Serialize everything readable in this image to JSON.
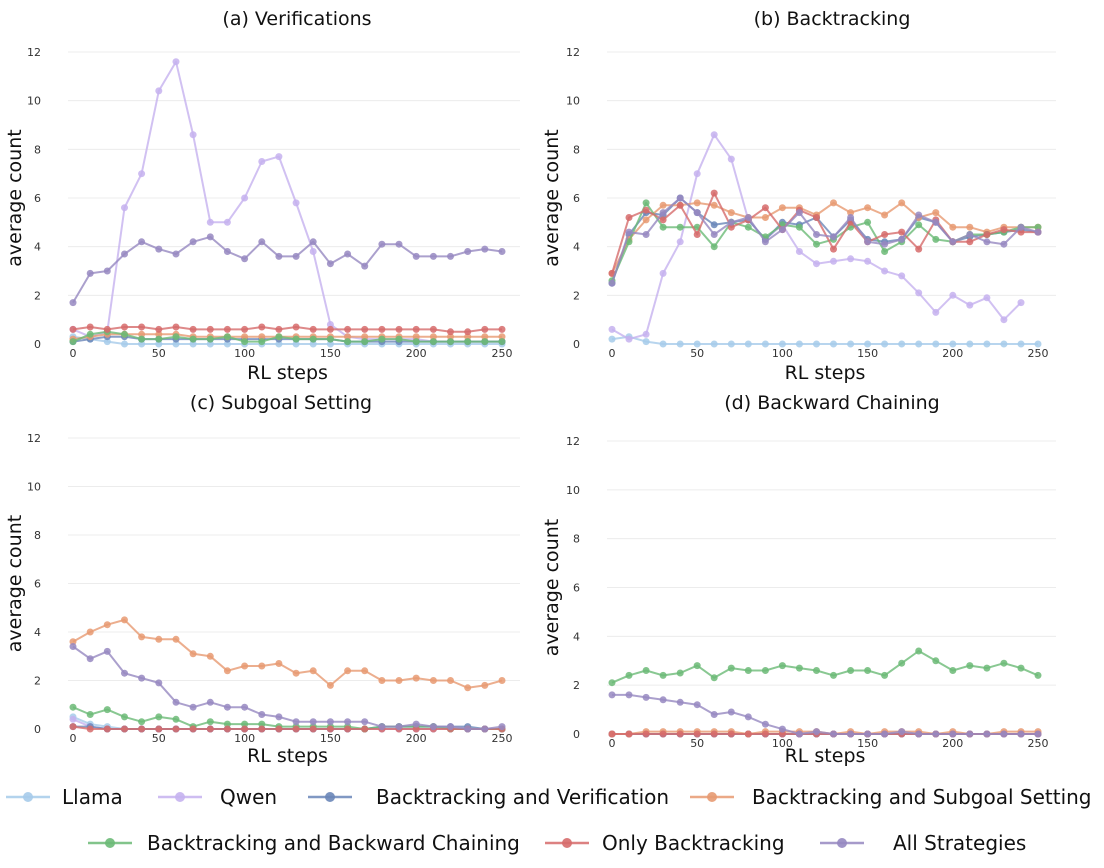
{
  "colors": {
    "Llama": "#a6cbea",
    "Qwen": "#c5b2ef",
    "Backtracking and Verification": "#6a86b8",
    "Backtracking and Subgoal Setting": "#e79a72",
    "Backtracking and Backward Chaining": "#6cba77",
    "Only Backtracking": "#d66b6b",
    "All Strategies": "#9688c1"
  },
  "legend": {
    "items": [
      "Llama",
      "Qwen",
      "Backtracking and Verification",
      "Backtracking and Subgoal Setting",
      "Backtracking and Backward Chaining",
      "Only Backtracking",
      "All Strategies"
    ]
  },
  "chart_data": [
    {
      "type": "line",
      "title": "(a) Verifications",
      "xlabel": "RL steps",
      "ylabel": "average count",
      "xlim": [
        0,
        250
      ],
      "ylim": [
        0,
        12
      ],
      "xticks": [
        "0",
        "50",
        "100",
        "150",
        "200",
        "250"
      ],
      "yticks": [
        "0",
        "2",
        "4",
        "6",
        "8",
        "10",
        "12"
      ],
      "x": [
        0,
        10,
        20,
        30,
        40,
        50,
        60,
        70,
        80,
        90,
        100,
        110,
        120,
        130,
        140,
        150,
        160,
        170,
        180,
        190,
        200,
        210,
        220,
        230,
        240,
        250
      ],
      "series": [
        {
          "name": "Llama",
          "values": [
            0.3,
            0.2,
            0.1,
            0.0,
            0.0,
            0.0,
            0.0,
            0.0,
            0.0,
            0.0,
            0.0,
            0.0,
            0.0,
            0.0,
            0.0,
            0.0,
            0.0,
            0.0,
            0.0,
            0.0,
            0.0,
            0.0,
            0.0,
            0.0,
            0.0,
            0.0
          ]
        },
        {
          "name": "Qwen",
          "values": [
            0.6,
            0.3,
            0.5,
            5.6,
            7.0,
            10.4,
            11.6,
            8.6,
            5.0,
            5.0,
            6.0,
            7.5,
            7.7,
            5.8,
            3.8,
            0.8,
            0.3,
            0.2,
            0.2,
            0.2,
            0.2,
            0.1,
            0.1,
            0.1,
            0.1,
            0.1
          ]
        },
        {
          "name": "Backtracking and Verification",
          "values": [
            0.1,
            0.2,
            0.3,
            0.3,
            0.2,
            0.2,
            0.2,
            0.2,
            0.2,
            0.2,
            0.2,
            0.2,
            0.2,
            0.2,
            0.2,
            0.2,
            0.1,
            0.1,
            0.1,
            0.1,
            0.1,
            0.1,
            0.1,
            0.1,
            0.1,
            0.1
          ]
        },
        {
          "name": "Backtracking and Subgoal Setting",
          "values": [
            0.2,
            0.3,
            0.4,
            0.4,
            0.4,
            0.4,
            0.4,
            0.3,
            0.3,
            0.3,
            0.3,
            0.3,
            0.3,
            0.3,
            0.3,
            0.3,
            0.3,
            0.3,
            0.3,
            0.3,
            0.3,
            0.3,
            0.3,
            0.3,
            0.3,
            0.3
          ]
        },
        {
          "name": "Backtracking and Backward Chaining",
          "values": [
            0.1,
            0.4,
            0.5,
            0.4,
            0.2,
            0.2,
            0.3,
            0.2,
            0.2,
            0.3,
            0.1,
            0.1,
            0.3,
            0.2,
            0.2,
            0.2,
            0.1,
            0.1,
            0.2,
            0.2,
            0.1,
            0.1,
            0.1,
            0.1,
            0.1,
            0.1
          ]
        },
        {
          "name": "Only Backtracking",
          "values": [
            0.6,
            0.7,
            0.6,
            0.7,
            0.7,
            0.6,
            0.7,
            0.6,
            0.6,
            0.6,
            0.6,
            0.7,
            0.6,
            0.7,
            0.6,
            0.6,
            0.6,
            0.6,
            0.6,
            0.6,
            0.6,
            0.6,
            0.5,
            0.5,
            0.6,
            0.6
          ]
        },
        {
          "name": "All Strategies",
          "values": [
            1.7,
            2.9,
            3.0,
            3.7,
            4.2,
            3.9,
            3.7,
            4.2,
            4.4,
            3.8,
            3.5,
            4.2,
            3.6,
            3.6,
            4.2,
            3.3,
            3.7,
            3.2,
            4.1,
            4.1,
            3.6,
            3.6,
            3.6,
            3.8,
            3.9,
            3.8
          ]
        }
      ]
    },
    {
      "type": "line",
      "title": "(b) Backtracking",
      "xlabel": "RL steps",
      "ylabel": "average count",
      "xlim": [
        0,
        250
      ],
      "ylim": [
        0,
        12
      ],
      "xticks": [
        "0",
        "50",
        "100",
        "150",
        "200",
        "250"
      ],
      "yticks": [
        "0",
        "2",
        "4",
        "6",
        "8",
        "10",
        "12"
      ],
      "x": [
        0,
        10,
        20,
        30,
        40,
        50,
        60,
        70,
        80,
        90,
        100,
        110,
        120,
        130,
        140,
        150,
        160,
        170,
        180,
        190,
        200,
        210,
        220,
        230,
        240,
        250
      ],
      "series": [
        {
          "name": "Llama",
          "values": [
            0.2,
            0.3,
            0.1,
            0.0,
            0.0,
            0.0,
            0.0,
            0.0,
            0.0,
            0.0,
            0.0,
            0.0,
            0.0,
            0.0,
            0.0,
            0.0,
            0.0,
            0.0,
            0.0,
            0.0,
            0.0,
            0.0,
            0.0,
            0.0,
            0.0,
            0.0
          ]
        },
        {
          "name": "Qwen",
          "values": [
            0.6,
            0.2,
            0.4,
            2.9,
            4.2,
            7.0,
            8.6,
            7.6,
            5.1,
            4.3,
            4.9,
            3.8,
            3.3,
            3.4,
            3.5,
            3.4,
            3.0,
            2.8,
            2.1,
            1.3,
            2.0,
            1.6,
            1.9,
            1.0,
            1.7,
            null
          ]
        },
        {
          "name": "Backtracking and Verification",
          "values": [
            2.5,
            4.5,
            5.4,
            5.3,
            6.0,
            5.4,
            4.9,
            5.0,
            5.1,
            4.3,
            5.0,
            4.9,
            5.2,
            4.4,
            5.1,
            4.3,
            4.2,
            4.3,
            5.2,
            5.0,
            4.2,
            4.4,
            4.5,
            4.6,
            4.7,
            4.6
          ]
        },
        {
          "name": "Backtracking and Subgoal Setting",
          "values": [
            2.9,
            4.3,
            5.1,
            5.7,
            5.7,
            5.8,
            5.7,
            5.4,
            5.2,
            5.2,
            5.6,
            5.6,
            5.3,
            5.8,
            5.4,
            5.6,
            5.3,
            5.8,
            5.2,
            5.4,
            4.8,
            4.8,
            4.6,
            4.8,
            4.8,
            4.8
          ]
        },
        {
          "name": "Backtracking and Backward Chaining",
          "values": [
            2.6,
            4.2,
            5.8,
            4.8,
            4.8,
            4.8,
            4.0,
            5.0,
            4.8,
            4.4,
            4.9,
            4.8,
            4.1,
            4.3,
            4.8,
            5.0,
            3.8,
            4.2,
            4.9,
            4.3,
            4.2,
            4.5,
            4.5,
            4.6,
            4.8,
            4.8
          ]
        },
        {
          "name": "Only Backtracking",
          "values": [
            2.9,
            5.2,
            5.5,
            5.1,
            5.7,
            4.5,
            6.2,
            4.8,
            5.1,
            5.6,
            4.7,
            5.5,
            5.2,
            3.9,
            5.0,
            4.2,
            4.5,
            4.6,
            3.9,
            5.1,
            4.2,
            4.2,
            4.5,
            4.7,
            4.6,
            4.6
          ]
        },
        {
          "name": "All Strategies",
          "values": [
            2.5,
            4.6,
            4.5,
            5.4,
            6.0,
            5.4,
            4.5,
            5.0,
            5.2,
            4.2,
            4.7,
            5.4,
            4.5,
            4.4,
            5.2,
            4.2,
            4.1,
            4.3,
            5.3,
            5.0,
            4.2,
            4.5,
            4.2,
            4.1,
            4.8,
            4.6
          ]
        }
      ]
    },
    {
      "type": "line",
      "title": "(c) Subgoal Setting",
      "xlabel": "RL steps",
      "ylabel": "average count",
      "xlim": [
        0,
        250
      ],
      "ylim": [
        0,
        12
      ],
      "xticks": [
        "0",
        "50",
        "100",
        "150",
        "200",
        "250"
      ],
      "yticks": [
        "0",
        "2",
        "4",
        "6",
        "8",
        "10",
        "12"
      ],
      "x": [
        0,
        10,
        20,
        30,
        40,
        50,
        60,
        70,
        80,
        90,
        100,
        110,
        120,
        130,
        140,
        150,
        160,
        170,
        180,
        190,
        200,
        210,
        220,
        230,
        240,
        250
      ],
      "series": [
        {
          "name": "Llama",
          "values": [
            0.5,
            0.2,
            0.1,
            0.0,
            0.0,
            0.0,
            0.0,
            0.0,
            0.0,
            0.0,
            0.0,
            0.0,
            0.0,
            0.0,
            0.0,
            0.0,
            0.0,
            0.0,
            0.0,
            0.0,
            0.0,
            0.0,
            0.0,
            0.0,
            0.0,
            0.0
          ]
        },
        {
          "name": "Qwen",
          "values": [
            0.4,
            0.1,
            0.0,
            0.0,
            0.0,
            0.0,
            0.0,
            0.0,
            0.0,
            0.0,
            0.0,
            0.0,
            0.0,
            0.0,
            0.0,
            0.0,
            0.0,
            0.0,
            0.0,
            0.0,
            0.0,
            0.0,
            0.0,
            0.0,
            0.0,
            0.0
          ]
        },
        {
          "name": "Backtracking and Verification",
          "values": [
            0.1,
            0.1,
            0.0,
            0.0,
            0.0,
            0.0,
            0.0,
            0.0,
            0.0,
            0.0,
            0.0,
            0.0,
            0.0,
            0.0,
            0.0,
            0.0,
            0.0,
            0.0,
            0.1,
            0.1,
            0.1,
            0.1,
            0.1,
            0.1,
            0.0,
            0.0
          ]
        },
        {
          "name": "Backtracking and Subgoal Setting",
          "values": [
            3.6,
            4.0,
            4.3,
            4.5,
            3.8,
            3.7,
            3.7,
            3.1,
            3.0,
            2.4,
            2.6,
            2.6,
            2.7,
            2.3,
            2.4,
            1.8,
            2.4,
            2.4,
            2.0,
            2.0,
            2.1,
            2.0,
            2.0,
            1.7,
            1.8,
            2.0
          ]
        },
        {
          "name": "Backtracking and Backward Chaining",
          "values": [
            0.9,
            0.6,
            0.8,
            0.5,
            0.3,
            0.5,
            0.4,
            0.1,
            0.3,
            0.2,
            0.2,
            0.2,
            0.1,
            0.1,
            0.1,
            0.1,
            0.1,
            0.0,
            0.1,
            0.1,
            0.1,
            0.1,
            0.0,
            0.0,
            0.0,
            0.0
          ]
        },
        {
          "name": "Only Backtracking",
          "values": [
            0.1,
            0.0,
            0.0,
            0.0,
            0.0,
            0.0,
            0.0,
            0.0,
            0.0,
            0.0,
            0.0,
            0.0,
            0.0,
            0.0,
            0.0,
            0.0,
            0.0,
            0.0,
            0.0,
            0.0,
            0.0,
            0.0,
            0.0,
            0.0,
            0.0,
            0.0
          ]
        },
        {
          "name": "All Strategies",
          "values": [
            3.4,
            2.9,
            3.2,
            2.3,
            2.1,
            1.9,
            1.1,
            0.9,
            1.1,
            0.9,
            0.9,
            0.6,
            0.5,
            0.3,
            0.3,
            0.3,
            0.3,
            0.3,
            0.1,
            0.1,
            0.2,
            0.1,
            0.1,
            0.0,
            0.0,
            0.1
          ]
        }
      ]
    },
    {
      "type": "line",
      "title": "(d) Backward Chaining",
      "xlabel": "RL steps",
      "ylabel": "average count",
      "xlim": [
        0,
        250
      ],
      "ylim": [
        0,
        12
      ],
      "xticks": [
        "0",
        "50",
        "100",
        "150",
        "200",
        "250"
      ],
      "yticks": [
        "0",
        "2",
        "4",
        "6",
        "8",
        "10",
        "12"
      ],
      "x": [
        0,
        10,
        20,
        30,
        40,
        50,
        60,
        70,
        80,
        90,
        100,
        110,
        120,
        130,
        140,
        150,
        160,
        170,
        180,
        190,
        200,
        210,
        220,
        230,
        240,
        250
      ],
      "series": [
        {
          "name": "Llama",
          "values": [
            0.0,
            0.0,
            0.0,
            0.0,
            0.0,
            0.0,
            0.0,
            0.0,
            0.0,
            0.0,
            0.0,
            0.0,
            0.0,
            0.0,
            0.0,
            0.0,
            0.0,
            0.0,
            0.0,
            0.0,
            0.0,
            0.0,
            0.0,
            0.0,
            0.0,
            0.0
          ]
        },
        {
          "name": "Qwen",
          "values": [
            0.0,
            0.0,
            0.0,
            0.0,
            0.0,
            0.0,
            0.0,
            0.0,
            0.0,
            0.0,
            0.0,
            0.0,
            0.0,
            0.0,
            0.0,
            0.0,
            0.0,
            0.0,
            0.0,
            0.0,
            0.0,
            0.0,
            0.0,
            0.0,
            0.0,
            0.0
          ]
        },
        {
          "name": "Backtracking and Verification",
          "values": [
            0.0,
            0.0,
            0.0,
            0.0,
            0.0,
            0.0,
            0.0,
            0.0,
            0.0,
            0.0,
            0.0,
            0.0,
            0.0,
            0.0,
            0.0,
            0.0,
            0.0,
            0.0,
            0.0,
            0.0,
            0.0,
            0.0,
            0.0,
            0.0,
            0.0,
            0.0
          ]
        },
        {
          "name": "Backtracking and Subgoal Setting",
          "values": [
            0.0,
            0.0,
            0.1,
            0.1,
            0.1,
            0.1,
            0.1,
            0.1,
            0.0,
            0.1,
            0.1,
            0.1,
            0.1,
            0.0,
            0.1,
            0.0,
            0.1,
            0.1,
            0.1,
            0.0,
            0.1,
            0.0,
            0.0,
            0.1,
            0.1,
            0.1
          ]
        },
        {
          "name": "Backtracking and Backward Chaining",
          "values": [
            2.1,
            2.4,
            2.6,
            2.4,
            2.5,
            2.8,
            2.3,
            2.7,
            2.6,
            2.6,
            2.8,
            2.7,
            2.6,
            2.4,
            2.6,
            2.6,
            2.4,
            2.9,
            3.4,
            3.0,
            2.6,
            2.8,
            2.7,
            2.9,
            2.7,
            2.4
          ]
        },
        {
          "name": "Only Backtracking",
          "values": [
            0.0,
            0.0,
            0.0,
            0.0,
            0.0,
            0.0,
            0.0,
            0.0,
            0.0,
            0.0,
            0.0,
            0.0,
            0.0,
            0.0,
            0.0,
            0.0,
            0.0,
            0.0,
            0.0,
            0.0,
            0.0,
            0.0,
            0.0,
            0.0,
            0.0,
            0.0
          ]
        },
        {
          "name": "All Strategies",
          "values": [
            1.6,
            1.6,
            1.5,
            1.4,
            1.3,
            1.2,
            0.8,
            0.9,
            0.7,
            0.4,
            0.2,
            0.0,
            0.1,
            0.0,
            0.0,
            0.0,
            0.0,
            0.1,
            0.0,
            0.0,
            0.0,
            0.0,
            0.0,
            0.0,
            0.0,
            0.0
          ]
        }
      ]
    }
  ]
}
